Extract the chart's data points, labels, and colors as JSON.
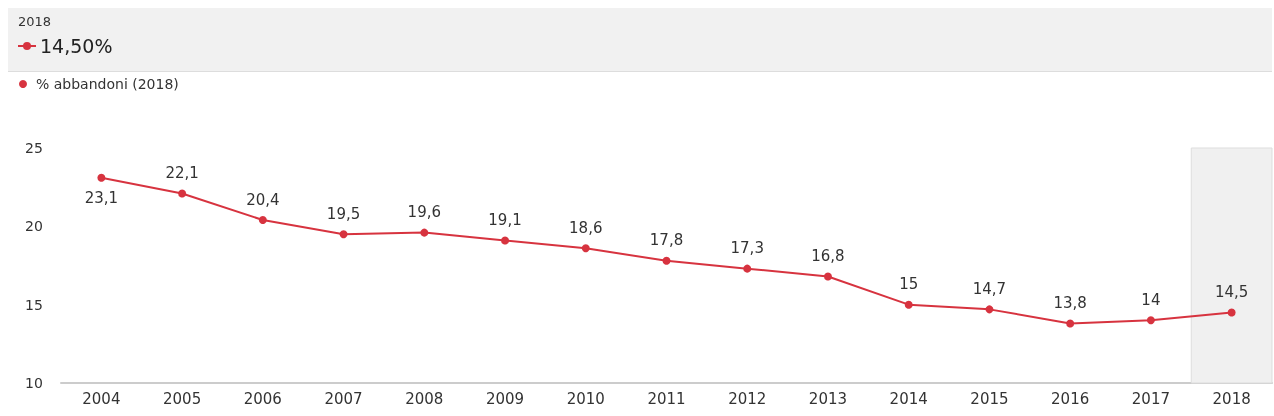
{
  "chart_data": {
    "type": "line",
    "title": "2018",
    "subtitle": "14,50%",
    "categories": [
      "2004",
      "2005",
      "2006",
      "2007",
      "2008",
      "2009",
      "2010",
      "2011",
      "2012",
      "2013",
      "2014",
      "2015",
      "2016",
      "2017",
      "2018"
    ],
    "series": [
      {
        "name": "% abbandoni (2018)",
        "color": "#d7333f",
        "values": [
          23.1,
          22.1,
          20.4,
          19.5,
          19.6,
          19.1,
          18.6,
          17.8,
          17.3,
          16.8,
          15,
          14.7,
          13.8,
          14,
          14.5
        ],
        "value_labels": [
          "23,1",
          "22,1",
          "20,4",
          "19,5",
          "19,6",
          "19,1",
          "18,6",
          "17,8",
          "17,3",
          "16,8",
          "15",
          "14,7",
          "13,8",
          "14",
          "14,5"
        ]
      }
    ],
    "ylim": [
      10,
      25
    ],
    "yticks": [
      10,
      15,
      20,
      25
    ],
    "grid": false,
    "legend": "top left",
    "marker": "circle",
    "line_style": "solid",
    "bands": [
      {
        "axis": "x",
        "from": "2018",
        "to": "2018",
        "color": "#f0f0f0"
      }
    ]
  }
}
